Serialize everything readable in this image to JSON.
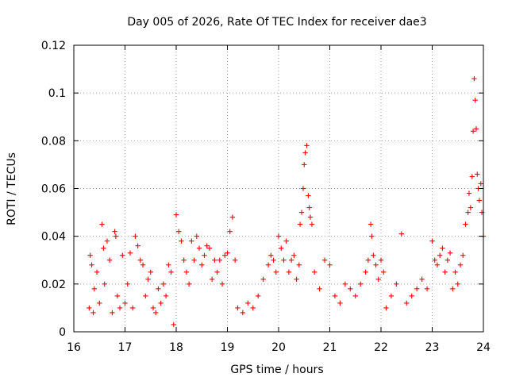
{
  "chart_data": {
    "type": "scatter",
    "title": "Day 005 of 2026, Rate Of TEC Index for receiver dae3",
    "xlabel": "GPS time / hours",
    "ylabel": "ROTI / TECUs",
    "xlim": [
      16,
      24
    ],
    "ylim": [
      0,
      0.12
    ],
    "xticks": [
      16,
      17,
      18,
      19,
      20,
      21,
      22,
      23,
      24
    ],
    "xtick_labels": [
      "16",
      "17",
      "18",
      "19",
      "20",
      "21",
      "22",
      "23",
      "24"
    ],
    "yticks": [
      0,
      0.02,
      0.04,
      0.06,
      0.08,
      0.1,
      0.12
    ],
    "ytick_labels": [
      "0",
      "0.02",
      "0.04",
      "0.06",
      "0.08",
      "0.1",
      "0.12"
    ],
    "grid": true,
    "marker": "+",
    "color": "#ff0000",
    "series": [
      {
        "name": "ROTI",
        "points": [
          [
            16.3,
            0.01
          ],
          [
            16.32,
            0.032
          ],
          [
            16.35,
            0.028
          ],
          [
            16.38,
            0.008
          ],
          [
            16.4,
            0.018
          ],
          [
            16.45,
            0.025
          ],
          [
            16.5,
            0.012
          ],
          [
            16.55,
            0.045
          ],
          [
            16.58,
            0.035
          ],
          [
            16.6,
            0.02
          ],
          [
            16.65,
            0.038
          ],
          [
            16.7,
            0.03
          ],
          [
            16.75,
            0.008
          ],
          [
            16.8,
            0.042
          ],
          [
            16.82,
            0.04
          ],
          [
            16.85,
            0.015
          ],
          [
            16.9,
            0.01
          ],
          [
            16.95,
            0.032
          ],
          [
            17.0,
            0.012
          ],
          [
            17.05,
            0.02
          ],
          [
            17.1,
            0.033
          ],
          [
            17.15,
            0.01
          ],
          [
            17.2,
            0.04
          ],
          [
            17.25,
            0.036
          ],
          [
            17.3,
            0.03
          ],
          [
            17.35,
            0.028
          ],
          [
            17.4,
            0.015
          ],
          [
            17.45,
            0.022
          ],
          [
            17.5,
            0.025
          ],
          [
            17.55,
            0.01
          ],
          [
            17.6,
            0.008
          ],
          [
            17.65,
            0.018
          ],
          [
            17.7,
            0.012
          ],
          [
            17.75,
            0.02
          ],
          [
            17.8,
            0.015
          ],
          [
            17.85,
            0.028
          ],
          [
            17.9,
            0.025
          ],
          [
            17.95,
            0.003
          ],
          [
            18.0,
            0.049
          ],
          [
            18.05,
            0.042
          ],
          [
            18.1,
            0.038
          ],
          [
            18.15,
            0.03
          ],
          [
            18.2,
            0.025
          ],
          [
            18.25,
            0.02
          ],
          [
            18.3,
            0.038
          ],
          [
            18.35,
            0.03
          ],
          [
            18.4,
            0.04
          ],
          [
            18.45,
            0.035
          ],
          [
            18.5,
            0.028
          ],
          [
            18.55,
            0.032
          ],
          [
            18.6,
            0.036
          ],
          [
            18.65,
            0.035
          ],
          [
            18.7,
            0.022
          ],
          [
            18.75,
            0.03
          ],
          [
            18.8,
            0.025
          ],
          [
            18.85,
            0.03
          ],
          [
            18.9,
            0.02
          ],
          [
            18.95,
            0.032
          ],
          [
            19.0,
            0.033
          ],
          [
            19.05,
            0.042
          ],
          [
            19.1,
            0.048
          ],
          [
            19.15,
            0.03
          ],
          [
            19.2,
            0.01
          ],
          [
            19.3,
            0.008
          ],
          [
            19.4,
            0.012
          ],
          [
            19.5,
            0.01
          ],
          [
            19.6,
            0.015
          ],
          [
            19.7,
            0.022
          ],
          [
            19.8,
            0.028
          ],
          [
            19.85,
            0.032
          ],
          [
            19.9,
            0.03
          ],
          [
            19.95,
            0.025
          ],
          [
            20.0,
            0.04
          ],
          [
            20.05,
            0.035
          ],
          [
            20.1,
            0.03
          ],
          [
            20.15,
            0.038
          ],
          [
            20.2,
            0.025
          ],
          [
            20.25,
            0.03
          ],
          [
            20.3,
            0.032
          ],
          [
            20.35,
            0.022
          ],
          [
            20.4,
            0.028
          ],
          [
            20.42,
            0.045
          ],
          [
            20.45,
            0.05
          ],
          [
            20.48,
            0.06
          ],
          [
            20.5,
            0.07
          ],
          [
            20.52,
            0.075
          ],
          [
            20.55,
            0.078
          ],
          [
            20.58,
            0.057
          ],
          [
            20.6,
            0.052
          ],
          [
            20.62,
            0.048
          ],
          [
            20.65,
            0.045
          ],
          [
            20.7,
            0.025
          ],
          [
            20.8,
            0.018
          ],
          [
            20.9,
            0.03
          ],
          [
            21.0,
            0.028
          ],
          [
            21.1,
            0.015
          ],
          [
            21.2,
            0.012
          ],
          [
            21.3,
            0.02
          ],
          [
            21.4,
            0.018
          ],
          [
            21.5,
            0.015
          ],
          [
            21.6,
            0.02
          ],
          [
            21.7,
            0.025
          ],
          [
            21.75,
            0.03
          ],
          [
            21.8,
            0.045
          ],
          [
            21.82,
            0.04
          ],
          [
            21.85,
            0.032
          ],
          [
            21.9,
            0.028
          ],
          [
            21.95,
            0.022
          ],
          [
            22.0,
            0.03
          ],
          [
            22.05,
            0.025
          ],
          [
            22.1,
            0.01
          ],
          [
            22.2,
            0.015
          ],
          [
            22.3,
            0.02
          ],
          [
            22.4,
            0.041
          ],
          [
            22.5,
            0.012
          ],
          [
            22.6,
            0.015
          ],
          [
            22.7,
            0.018
          ],
          [
            22.8,
            0.022
          ],
          [
            22.9,
            0.018
          ],
          [
            23.0,
            0.038
          ],
          [
            23.05,
            0.03
          ],
          [
            23.1,
            0.028
          ],
          [
            23.15,
            0.032
          ],
          [
            23.2,
            0.035
          ],
          [
            23.25,
            0.025
          ],
          [
            23.3,
            0.03
          ],
          [
            23.35,
            0.033
          ],
          [
            23.4,
            0.018
          ],
          [
            23.45,
            0.025
          ],
          [
            23.5,
            0.02
          ],
          [
            23.55,
            0.028
          ],
          [
            23.6,
            0.032
          ],
          [
            23.65,
            0.045
          ],
          [
            23.7,
            0.05
          ],
          [
            23.72,
            0.058
          ],
          [
            23.75,
            0.052
          ],
          [
            23.78,
            0.065
          ],
          [
            23.8,
            0.084
          ],
          [
            23.82,
            0.106
          ],
          [
            23.84,
            0.097
          ],
          [
            23.86,
            0.085
          ],
          [
            23.88,
            0.066
          ],
          [
            23.9,
            0.06
          ],
          [
            23.92,
            0.055
          ],
          [
            23.95,
            0.062
          ],
          [
            23.97,
            0.05
          ],
          [
            24.0,
            0.04
          ]
        ]
      }
    ]
  }
}
